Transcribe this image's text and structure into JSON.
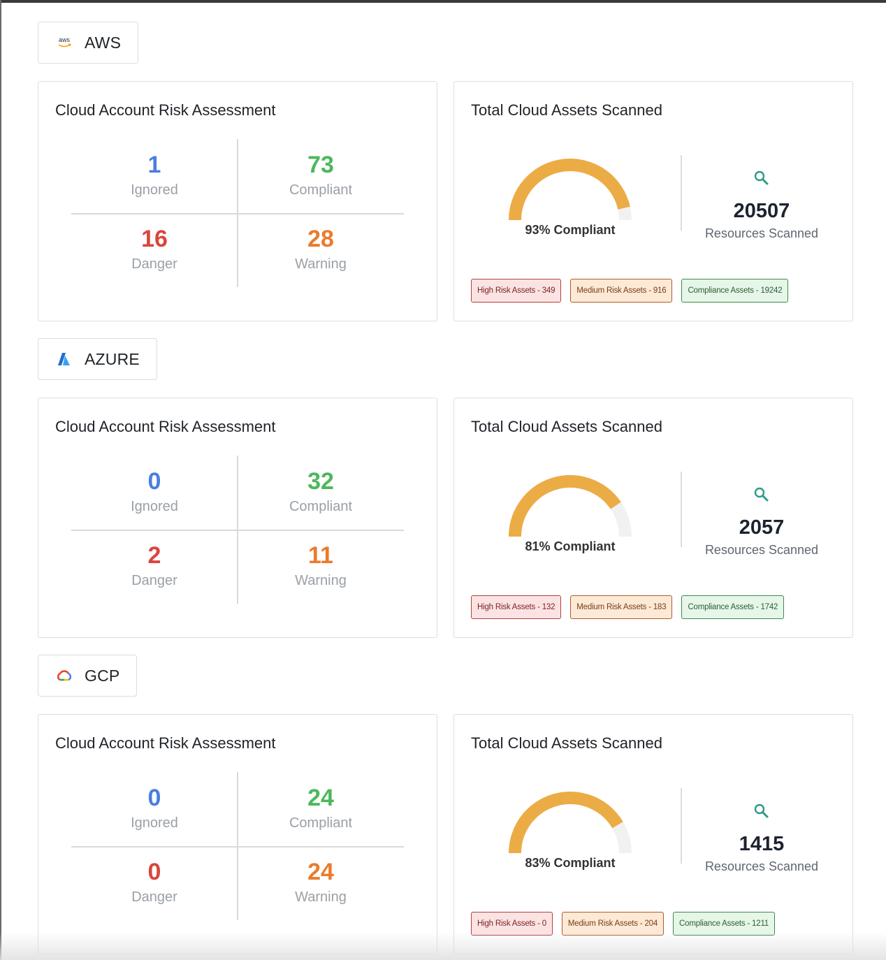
{
  "colors": {
    "ignored": "#4a7fe0",
    "compliant": "#4cb85c",
    "danger": "#d9463f",
    "warning": "#ea7b2c",
    "gauge_fill": "#ecac45",
    "gauge_track": "#f1f1f1"
  },
  "providers": [
    {
      "name": "AWS",
      "logo_icon": "aws-logo",
      "logo_text": "aws",
      "risk": {
        "title": "Cloud Account Risk Assessment",
        "ignored": "1",
        "ignored_label": "Ignored",
        "compliant": "73",
        "compliant_label": "Compliant",
        "danger": "16",
        "danger_label": "Danger",
        "warning": "28",
        "warning_label": "Warning"
      },
      "assets": {
        "title": "Total Cloud Assets Scanned",
        "compliance_percent": 93,
        "gauge_label": "93% Compliant",
        "scan_icon": "magnifier-icon",
        "resources_count": "20507",
        "resources_label": "Resources Scanned",
        "high_risk": "High Risk Assets - 349",
        "medium_risk": "Medium Risk Assets - 916",
        "compliance_assets": "Compliance Assets - 19242"
      }
    },
    {
      "name": "AZURE",
      "logo_icon": "azure-logo",
      "risk": {
        "title": "Cloud Account Risk Assessment",
        "ignored": "0",
        "ignored_label": "Ignored",
        "compliant": "32",
        "compliant_label": "Compliant",
        "danger": "2",
        "danger_label": "Danger",
        "warning": "11",
        "warning_label": "Warning"
      },
      "assets": {
        "title": "Total Cloud Assets Scanned",
        "compliance_percent": 81,
        "gauge_label": "81% Compliant",
        "scan_icon": "magnifier-icon",
        "resources_count": "2057",
        "resources_label": "Resources Scanned",
        "high_risk": "High Risk Assets - 132",
        "medium_risk": "Medium Risk Assets - 183",
        "compliance_assets": "Compliance Assets - 1742"
      }
    },
    {
      "name": "GCP",
      "logo_icon": "gcp-logo",
      "risk": {
        "title": "Cloud Account Risk Assessment",
        "ignored": "0",
        "ignored_label": "Ignored",
        "compliant": "24",
        "compliant_label": "Compliant",
        "danger": "0",
        "danger_label": "Danger",
        "warning": "24",
        "warning_label": "Warning"
      },
      "assets": {
        "title": "Total Cloud Assets Scanned",
        "compliance_percent": 83,
        "gauge_label": "83% Compliant",
        "scan_icon": "magnifier-icon",
        "resources_count": "1415",
        "resources_label": "Resources Scanned",
        "high_risk": "High Risk Assets - 0",
        "medium_risk": "Medium Risk Assets - 204",
        "compliance_assets": "Compliance Assets - 1211"
      }
    }
  ]
}
